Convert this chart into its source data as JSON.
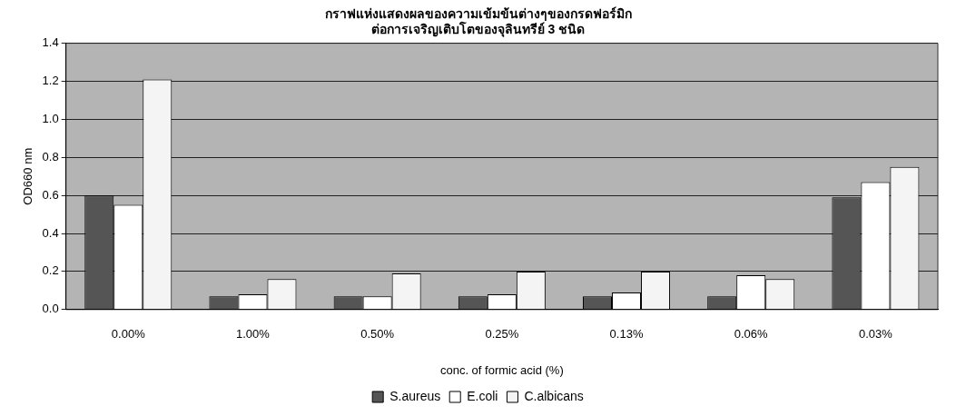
{
  "chart_data": {
    "type": "bar",
    "title": [
      "กราฟแห่งแสดงผลของความเข้มข้นต่างๆของกรดฟอร์มิก",
      "ต่อการเจริญเติบโตของจุลินทรีย์ 3 ชนิด"
    ],
    "xlabel": "conc. of formic acid (%)",
    "ylabel": "OD660 nm",
    "categories": [
      "0.00%",
      "1.00%",
      "0.50%",
      "0.25%",
      "0.13%",
      "0.06%",
      "0.03%"
    ],
    "series": [
      {
        "name": "S.aureus",
        "color": "#555555",
        "values": [
          0.6,
          0.07,
          0.07,
          0.07,
          0.07,
          0.07,
          0.59
        ]
      },
      {
        "name": "E.coli",
        "color": "#ffffff",
        "values": [
          0.55,
          0.08,
          0.07,
          0.08,
          0.09,
          0.18,
          0.67
        ]
      },
      {
        "name": "C.albicans",
        "color": "#f4f4f4",
        "values": [
          1.21,
          0.16,
          0.19,
          0.2,
          0.2,
          0.16,
          0.75
        ]
      }
    ],
    "ylim": [
      0,
      1.4
    ],
    "yticks": [
      {
        "value": 0,
        "label": "0.0"
      },
      {
        "value": 0.2,
        "label": "0.2"
      },
      {
        "value": 0.4,
        "label": "0.4"
      },
      {
        "value": 0.6,
        "label": "0.6"
      },
      {
        "value": 0.8,
        "label": "0.8"
      },
      {
        "value": 1,
        "label": "1.0"
      },
      {
        "value": 1.2,
        "label": "1.2"
      },
      {
        "value": 1.4,
        "label": "1.4"
      }
    ],
    "grid": "y",
    "legend": "bottom"
  }
}
